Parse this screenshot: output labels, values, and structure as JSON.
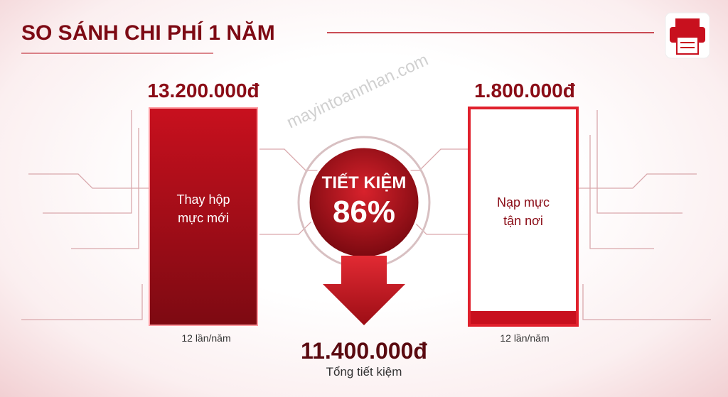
{
  "header": {
    "title": "SO SÁNH CHI PHÍ 1 NĂM",
    "watermark": "mayintoannhan.com"
  },
  "left": {
    "price": "13.200.000đ",
    "label": [
      "Thay hộp",
      "mực mới"
    ],
    "frequency": "12 lần/năm"
  },
  "right": {
    "price": "1.800.000đ",
    "label": [
      "Nạp mực",
      "tận nơi"
    ],
    "frequency": "12 lần/năm"
  },
  "center": {
    "caption": "TIẾT KIỆM",
    "percent": "86%"
  },
  "total": {
    "amount": "11.400.000đ",
    "caption": "Tổng tiết kiệm"
  }
}
